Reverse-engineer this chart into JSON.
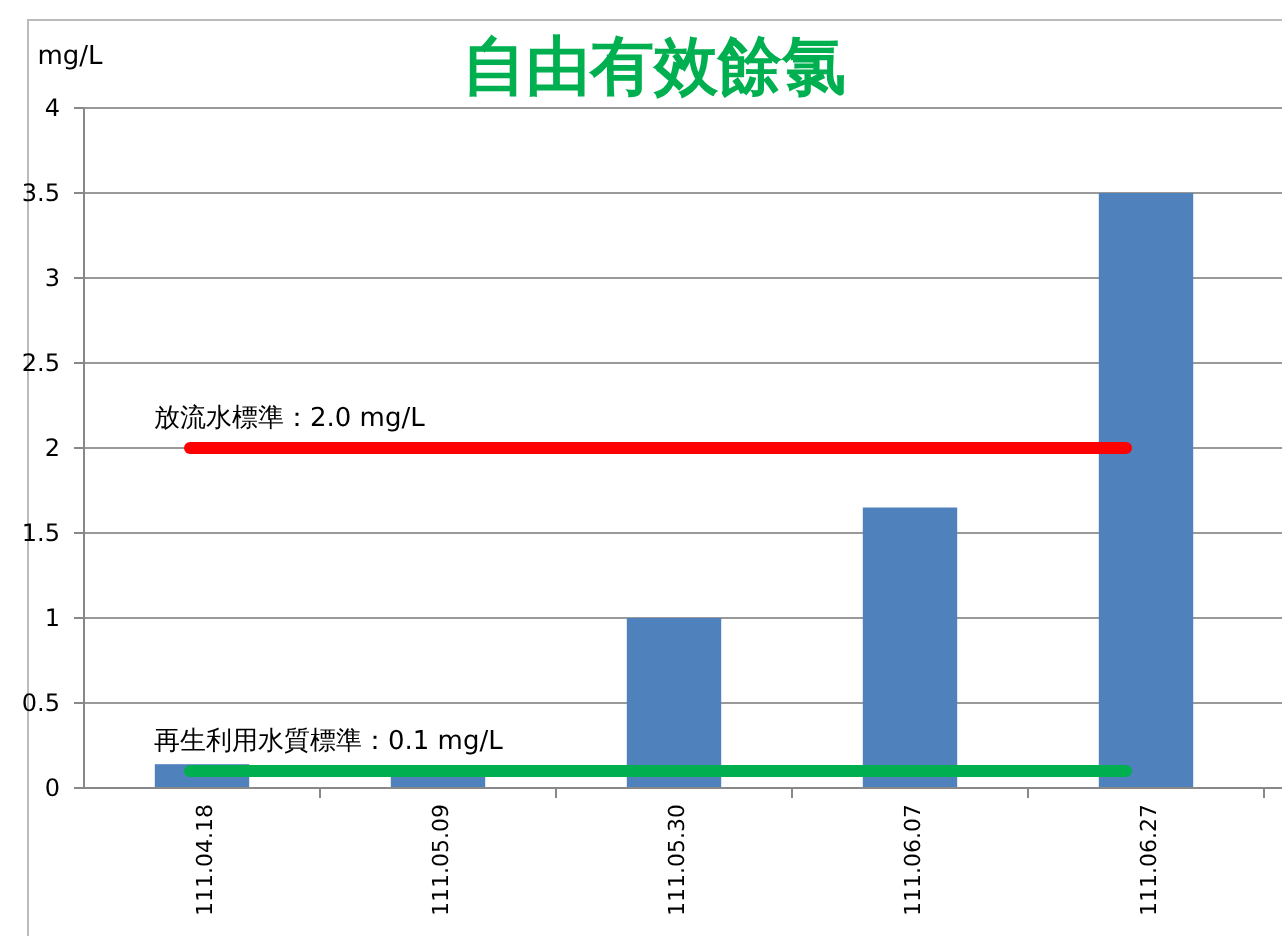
{
  "chart_data": {
    "type": "bar",
    "title": "自由有效餘氯",
    "ylabel": "mg/L",
    "categories": [
      "111.04.18",
      "111.05.09",
      "111.05.30",
      "111.06.07",
      "111.06.27"
    ],
    "values": [
      0.14,
      0.1,
      1.0,
      1.65,
      3.5
    ],
    "color": "#4f81bd",
    "ylim": [
      0,
      4
    ],
    "yticks": [
      0,
      0.5,
      1,
      1.5,
      2,
      2.5,
      3,
      3.5,
      4
    ],
    "grid": "y",
    "ref_lines": [
      {
        "axis": "y",
        "value": 2.0,
        "label": "放流水標準：2.0 mg/L",
        "color": "#ff0000"
      },
      {
        "axis": "y",
        "value": 0.1,
        "label": "再生利用水質標準：0.1 mg/L",
        "color": "#00b050"
      }
    ]
  }
}
